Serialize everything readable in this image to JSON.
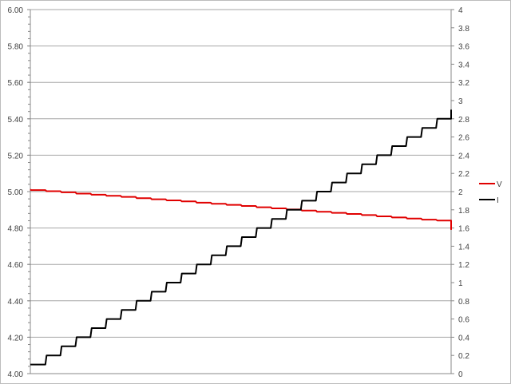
{
  "chart_data": {
    "type": "line",
    "title": "",
    "xlabel": "",
    "ylabel": "",
    "y2label": "",
    "step": true,
    "grid": true,
    "legend_position": "right",
    "ylim": [
      4.0,
      6.0
    ],
    "y2lim": [
      0,
      4
    ],
    "y_ticks": [
      "4.00",
      "4.20",
      "4.40",
      "4.60",
      "4.80",
      "5.00",
      "5.20",
      "5.40",
      "5.60",
      "5.80",
      "6.00"
    ],
    "y2_ticks": [
      "0",
      "0.2",
      "0.4",
      "0.6",
      "0.8",
      "1",
      "1.2",
      "1.4",
      "1.6",
      "1.8",
      "2",
      "2.2",
      "2.4",
      "2.6",
      "2.8",
      "3",
      "3.2",
      "3.4",
      "3.6",
      "3.8",
      "4"
    ],
    "series": [
      {
        "name": "V",
        "axis": "left",
        "color": "#e00000",
        "values": [
          5.012,
          5.008,
          5.002,
          4.996,
          4.989,
          4.983,
          4.977,
          4.971,
          4.964,
          4.958,
          4.952,
          4.946,
          4.939,
          4.933,
          4.927,
          4.921,
          4.914,
          4.908,
          4.902,
          4.896,
          4.889,
          4.883,
          4.877,
          4.871,
          4.864,
          4.858,
          4.852,
          4.846,
          4.841,
          4.79
        ]
      },
      {
        "name": "I",
        "axis": "right",
        "color": "#000000",
        "values": [
          0.1,
          0.1,
          0.2,
          0.3,
          0.4,
          0.5,
          0.6,
          0.7,
          0.8,
          0.9,
          1.0,
          1.1,
          1.2,
          1.3,
          1.4,
          1.5,
          1.6,
          1.7,
          1.8,
          1.9,
          2.0,
          2.1,
          2.2,
          2.3,
          2.4,
          2.5,
          2.6,
          2.7,
          2.8,
          2.9
        ]
      }
    ]
  }
}
